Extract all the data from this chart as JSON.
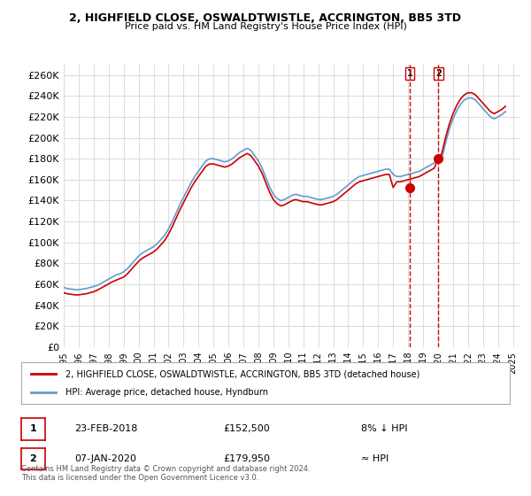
{
  "title1": "2, HIGHFIELD CLOSE, OSWALDTWISTLE, ACCRINGTON, BB5 3TD",
  "title2": "Price paid vs. HM Land Registry's House Price Index (HPI)",
  "ylabel_ticks": [
    "£0",
    "£20K",
    "£40K",
    "£60K",
    "£80K",
    "£100K",
    "£120K",
    "£140K",
    "£160K",
    "£180K",
    "£200K",
    "£220K",
    "£240K",
    "£260K"
  ],
  "ytick_values": [
    0,
    20000,
    40000,
    60000,
    80000,
    100000,
    120000,
    140000,
    160000,
    180000,
    200000,
    220000,
    240000,
    260000
  ],
  "ylim": [
    0,
    270000
  ],
  "xlim_start": 1995.0,
  "xlim_end": 2025.5,
  "red_color": "#cc0000",
  "blue_color": "#6699cc",
  "legend_label_red": "2, HIGHFIELD CLOSE, OSWALDTWISTLE, ACCRINGTON, BB5 3TD (detached house)",
  "legend_label_blue": "HPI: Average price, detached house, Hyndburn",
  "sale1_label": "1",
  "sale1_date": "23-FEB-2018",
  "sale1_price": "£152,500",
  "sale1_note": "8% ↓ HPI",
  "sale2_label": "2",
  "sale2_date": "07-JAN-2020",
  "sale2_price": "£179,950",
  "sale2_note": "≈ HPI",
  "footer": "Contains HM Land Registry data © Crown copyright and database right 2024.\nThis data is licensed under the Open Government Licence v3.0.",
  "hpi_x": [
    1995.0,
    1995.25,
    1995.5,
    1995.75,
    1996.0,
    1996.25,
    1996.5,
    1996.75,
    1997.0,
    1997.25,
    1997.5,
    1997.75,
    1998.0,
    1998.25,
    1998.5,
    1998.75,
    1999.0,
    1999.25,
    1999.5,
    1999.75,
    2000.0,
    2000.25,
    2000.5,
    2000.75,
    2001.0,
    2001.25,
    2001.5,
    2001.75,
    2002.0,
    2002.25,
    2002.5,
    2002.75,
    2003.0,
    2003.25,
    2003.5,
    2003.75,
    2004.0,
    2004.25,
    2004.5,
    2004.75,
    2005.0,
    2005.25,
    2005.5,
    2005.75,
    2006.0,
    2006.25,
    2006.5,
    2006.75,
    2007.0,
    2007.25,
    2007.5,
    2007.75,
    2008.0,
    2008.25,
    2008.5,
    2008.75,
    2009.0,
    2009.25,
    2009.5,
    2009.75,
    2010.0,
    2010.25,
    2010.5,
    2010.75,
    2011.0,
    2011.25,
    2011.5,
    2011.75,
    2012.0,
    2012.25,
    2012.5,
    2012.75,
    2013.0,
    2013.25,
    2013.5,
    2013.75,
    2014.0,
    2014.25,
    2014.5,
    2014.75,
    2015.0,
    2015.25,
    2015.5,
    2015.75,
    2016.0,
    2016.25,
    2016.5,
    2016.75,
    2017.0,
    2017.25,
    2017.5,
    2017.75,
    2018.0,
    2018.25,
    2018.5,
    2018.75,
    2019.0,
    2019.25,
    2019.5,
    2019.75,
    2020.0,
    2020.25,
    2020.5,
    2020.75,
    2021.0,
    2021.25,
    2021.5,
    2021.75,
    2022.0,
    2022.25,
    2022.5,
    2022.75,
    2023.0,
    2023.25,
    2023.5,
    2023.75,
    2024.0,
    2024.25,
    2024.5
  ],
  "hpi_y": [
    57000,
    56000,
    55500,
    55000,
    55000,
    55500,
    56000,
    57000,
    58000,
    59000,
    61000,
    63000,
    65000,
    67000,
    69000,
    70000,
    72000,
    75000,
    79000,
    83000,
    87000,
    90000,
    92000,
    94000,
    96000,
    99000,
    103000,
    107000,
    113000,
    120000,
    128000,
    136000,
    143000,
    150000,
    157000,
    163000,
    168000,
    173000,
    178000,
    180000,
    180000,
    179000,
    178000,
    177000,
    178000,
    180000,
    183000,
    186000,
    188000,
    190000,
    188000,
    183000,
    178000,
    171000,
    162000,
    153000,
    146000,
    142000,
    140000,
    141000,
    143000,
    145000,
    146000,
    145000,
    144000,
    144000,
    143000,
    142000,
    141000,
    141000,
    142000,
    143000,
    144000,
    146000,
    149000,
    152000,
    155000,
    158000,
    161000,
    163000,
    164000,
    165000,
    166000,
    167000,
    168000,
    169000,
    170000,
    170000,
    165000,
    163000,
    163000,
    164000,
    165000,
    166000,
    167000,
    168000,
    170000,
    172000,
    174000,
    176000,
    178000,
    180000,
    195000,
    208000,
    218000,
    226000,
    232000,
    236000,
    238000,
    238000,
    236000,
    232000,
    228000,
    224000,
    220000,
    218000,
    220000,
    222000,
    225000
  ],
  "red_x": [
    1995.0,
    1995.25,
    1995.5,
    1995.75,
    1996.0,
    1996.25,
    1996.5,
    1996.75,
    1997.0,
    1997.25,
    1997.5,
    1997.75,
    1998.0,
    1998.25,
    1998.5,
    1998.75,
    1999.0,
    1999.25,
    1999.5,
    1999.75,
    2000.0,
    2000.25,
    2000.5,
    2000.75,
    2001.0,
    2001.25,
    2001.5,
    2001.75,
    2002.0,
    2002.25,
    2002.5,
    2002.75,
    2003.0,
    2003.25,
    2003.5,
    2003.75,
    2004.0,
    2004.25,
    2004.5,
    2004.75,
    2005.0,
    2005.25,
    2005.5,
    2005.75,
    2006.0,
    2006.25,
    2006.5,
    2006.75,
    2007.0,
    2007.25,
    2007.5,
    2007.75,
    2008.0,
    2008.25,
    2008.5,
    2008.75,
    2009.0,
    2009.25,
    2009.5,
    2009.75,
    2010.0,
    2010.25,
    2010.5,
    2010.75,
    2011.0,
    2011.25,
    2011.5,
    2011.75,
    2012.0,
    2012.25,
    2012.5,
    2012.75,
    2013.0,
    2013.25,
    2013.5,
    2013.75,
    2014.0,
    2014.25,
    2014.5,
    2014.75,
    2015.0,
    2015.25,
    2015.5,
    2015.75,
    2016.0,
    2016.25,
    2016.5,
    2016.75,
    2017.0,
    2017.25,
    2017.5,
    2017.75,
    2018.0,
    2018.25,
    2018.5,
    2018.75,
    2019.0,
    2019.25,
    2019.5,
    2019.75,
    2020.0,
    2020.25,
    2020.5,
    2020.75,
    2021.0,
    2021.25,
    2021.5,
    2021.75,
    2022.0,
    2022.25,
    2022.5,
    2022.75,
    2023.0,
    2023.25,
    2023.5,
    2023.75,
    2024.0,
    2024.25,
    2024.5
  ],
  "red_y": [
    52000,
    51000,
    50500,
    50000,
    50000,
    50500,
    51000,
    52000,
    53000,
    54500,
    56500,
    58500,
    60500,
    62500,
    64000,
    65500,
    67000,
    70000,
    74000,
    78000,
    82000,
    85000,
    87000,
    89000,
    91000,
    94000,
    98000,
    102000,
    108000,
    115000,
    123000,
    131000,
    138000,
    145000,
    152000,
    158000,
    163000,
    168000,
    173000,
    175000,
    175000,
    174000,
    173000,
    172000,
    173000,
    175000,
    178000,
    181000,
    183000,
    185000,
    183000,
    178000,
    173000,
    166000,
    157000,
    148000,
    141000,
    137000,
    135000,
    136000,
    138000,
    140000,
    141000,
    140000,
    139000,
    139000,
    138000,
    137000,
    136000,
    136000,
    137000,
    138000,
    139000,
    141000,
    144000,
    147000,
    150000,
    153000,
    156000,
    158000,
    159000,
    160000,
    161000,
    162000,
    163000,
    164000,
    165000,
    165000,
    152500,
    158000,
    158000,
    159000,
    160000,
    161000,
    162000,
    163000,
    165000,
    167000,
    169000,
    171000,
    179950,
    185000,
    200000,
    213000,
    223000,
    231000,
    237000,
    241000,
    243000,
    243000,
    241000,
    237000,
    233000,
    229000,
    225000,
    223000,
    225000,
    227000,
    230000
  ],
  "sale1_x": 2018.12,
  "sale1_y": 152500,
  "sale2_x": 2020.02,
  "sale2_y": 179950,
  "bg_color": "#ffffff",
  "grid_color": "#dddddd",
  "plot_bg": "#ffffff"
}
